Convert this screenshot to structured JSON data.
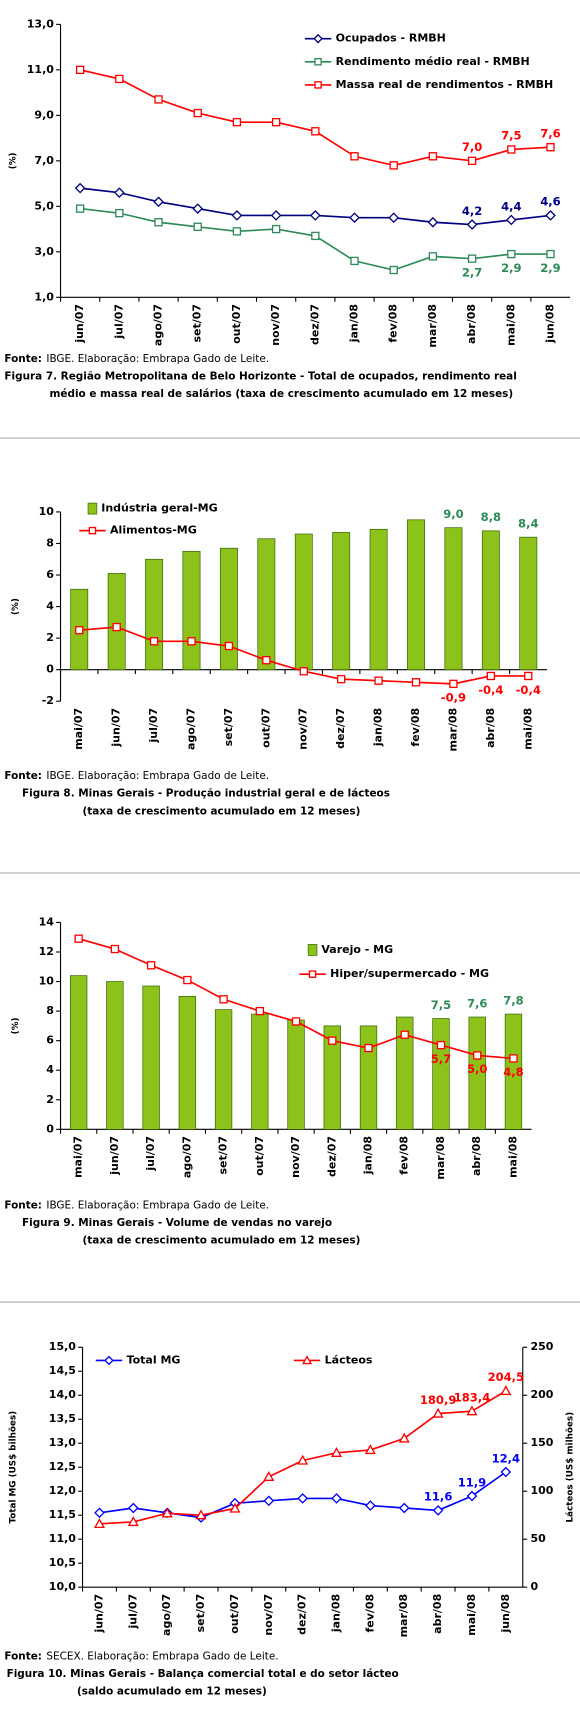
{
  "chart_data": [
    {
      "type": "line",
      "y_label": "(%)",
      "categories": [
        "jun/07",
        "jul/07",
        "ago/07",
        "set/07",
        "out/07",
        "nov/07",
        "dez/07",
        "jan/08",
        "fev/08",
        "mar/08",
        "abr/08",
        "mai/08",
        "jun/08"
      ],
      "ylim": [
        1,
        13
      ],
      "yticks": [
        {
          "value": 1,
          "label": "1,0"
        },
        {
          "value": 3,
          "label": "3,0"
        },
        {
          "value": 5,
          "label": "5,0"
        },
        {
          "value": 7,
          "label": "7,0"
        },
        {
          "value": 9,
          "label": "9,0"
        },
        {
          "value": 11,
          "label": "11,0"
        },
        {
          "value": 13,
          "label": "13,0"
        }
      ],
      "series": [
        {
          "name": "Ocupados - RMBH",
          "type": "line",
          "color": "#000080",
          "marker": "diamond",
          "label_position": "above",
          "values": [
            5.8,
            5.6,
            5.2,
            4.9,
            4.6,
            4.6,
            4.6,
            4.5,
            4.5,
            4.3,
            4.2,
            4.4,
            4.6
          ],
          "value_labels": [
            null,
            null,
            null,
            null,
            null,
            null,
            null,
            null,
            null,
            null,
            "4,2",
            "4,4",
            "4,6"
          ]
        },
        {
          "name": "Rendimento médio real - RMBH",
          "type": "line",
          "color": "#2E8B57",
          "marker": "square",
          "label_position": "below",
          "values": [
            4.9,
            4.7,
            4.3,
            4.1,
            3.9,
            4.0,
            3.7,
            2.6,
            2.2,
            2.8,
            2.7,
            2.9,
            2.9
          ],
          "value_labels": [
            null,
            null,
            null,
            null,
            null,
            null,
            null,
            null,
            null,
            null,
            "2,7",
            "2,9",
            "2,9"
          ]
        },
        {
          "name": "Massa real de rendimentos - RMBH",
          "type": "line",
          "color": "#FF0000",
          "marker": "square",
          "label_position": "above",
          "values": [
            11.0,
            10.6,
            9.7,
            9.1,
            8.7,
            8.7,
            8.3,
            7.2,
            6.8,
            7.2,
            7.0,
            7.5,
            7.6
          ],
          "value_labels": [
            null,
            null,
            null,
            null,
            null,
            null,
            null,
            null,
            null,
            null,
            "7,0",
            "7,5",
            "7,6"
          ]
        }
      ],
      "source_label": "Fonte:",
      "source": "IBGE. Elaboração: Embrapa Gado de Leite.",
      "caption": [
        "Figura 7. Região Metropolitana de Belo Horizonte - Total de ocupados, rendimento real",
        "médio e massa real de salários (taxa de crescimento acumulado em 12 meses)"
      ]
    },
    {
      "type": "combo",
      "y_label": "(%)",
      "categories": [
        "mai/07",
        "jun/07",
        "jul/07",
        "ago/07",
        "set/07",
        "out/07",
        "nov/07",
        "dez/07",
        "jan/08",
        "fev/08",
        "mar/08",
        "abr/08",
        "mai/08"
      ],
      "ylim": [
        -2,
        10
      ],
      "yticks": [
        -2,
        0,
        2,
        4,
        6,
        8,
        10
      ],
      "series": [
        {
          "name": "Indústria geral-MG",
          "type": "bar",
          "color": "#8CC21A",
          "label_position": "above",
          "label_color": "#2E8B57",
          "values": [
            5.1,
            6.1,
            7.0,
            7.5,
            7.7,
            8.3,
            8.6,
            8.7,
            8.9,
            9.5,
            9.0,
            8.8,
            8.4
          ],
          "value_labels": [
            null,
            null,
            null,
            null,
            null,
            null,
            null,
            null,
            null,
            null,
            "9,0",
            "8,8",
            "8,4"
          ]
        },
        {
          "name": "Alimentos-MG",
          "type": "line",
          "color": "#FF0000",
          "marker": "square",
          "label_position": "below",
          "values": [
            2.5,
            2.7,
            1.8,
            1.8,
            1.5,
            0.6,
            -0.1,
            -0.6,
            -0.7,
            -0.8,
            -0.9,
            -0.4,
            -0.4
          ],
          "value_labels": [
            null,
            null,
            null,
            null,
            null,
            null,
            null,
            null,
            null,
            null,
            "-0,9",
            "-0,4",
            "-0,4"
          ]
        }
      ],
      "source_label": "Fonte:",
      "source": "IBGE. Elaboração: Embrapa Gado de Leite.",
      "caption": [
        "Figura 8. Minas Gerais - Produção industrial geral e de lácteos",
        "(taxa de crescimento acumulado em 12 meses)"
      ]
    },
    {
      "type": "combo",
      "y_label": "(%)",
      "categories": [
        "mai/07",
        "jun/07",
        "jul/07",
        "ago/07",
        "set/07",
        "out/07",
        "nov/07",
        "dez/07",
        "jan/08",
        "fev/08",
        "mar/08",
        "abr/08",
        "mai/08"
      ],
      "ylim": [
        0,
        14
      ],
      "yticks": [
        0,
        2,
        4,
        6,
        8,
        10,
        12,
        14
      ],
      "series": [
        {
          "name": "Varejo - MG",
          "type": "bar",
          "color": "#8CC21A",
          "label_position": "above",
          "label_color": "#2E8B57",
          "values": [
            10.4,
            10.0,
            9.7,
            9.0,
            8.1,
            7.8,
            7.4,
            7.0,
            7.0,
            7.6,
            7.5,
            7.6,
            7.8
          ],
          "value_labels": [
            null,
            null,
            null,
            null,
            null,
            null,
            null,
            null,
            null,
            null,
            "7,5",
            "7,6",
            "7,8"
          ]
        },
        {
          "name": "Hiper/supermercado - MG",
          "type": "line",
          "color": "#FF0000",
          "marker": "square",
          "label_position": "below",
          "values": [
            12.9,
            12.2,
            11.1,
            10.1,
            8.8,
            8.0,
            7.3,
            6.0,
            5.5,
            6.4,
            5.7,
            5.0,
            4.8
          ],
          "value_labels": [
            null,
            null,
            null,
            null,
            null,
            null,
            null,
            null,
            null,
            null,
            "5,7",
            "5,0",
            "4,8"
          ]
        }
      ],
      "source_label": "Fonte:",
      "source": "IBGE. Elaboração: Embrapa Gado de Leite.",
      "caption": [
        "Figura 9. Minas Gerais - Volume de vendas no varejo",
        "(taxa de crescimento acumulado em 12 meses)"
      ]
    },
    {
      "type": "line",
      "y_label": "Total MG (US$ bilhões)",
      "y2_label": "Lácteos (US$ milhões)",
      "categories": [
        "jun/07",
        "jul/07",
        "ago/07",
        "set/07",
        "out/07",
        "nov/07",
        "dez/07",
        "jan/08",
        "fev/08",
        "mar/08",
        "abr/08",
        "mai/08",
        "jun/08"
      ],
      "ylim": [
        10,
        15
      ],
      "yticks": [
        {
          "value": 10,
          "label": "10,0"
        },
        {
          "value": 10.5,
          "label": "10,5"
        },
        {
          "value": 11,
          "label": "11,0"
        },
        {
          "value": 11.5,
          "label": "11,5"
        },
        {
          "value": 12,
          "label": "12,0"
        },
        {
          "value": 12.5,
          "label": "12,5"
        },
        {
          "value": 13,
          "label": "13,0"
        },
        {
          "value": 13.5,
          "label": "13,5"
        },
        {
          "value": 14,
          "label": "14,0"
        },
        {
          "value": 14.5,
          "label": "14,5"
        },
        {
          "value": 15,
          "label": "15,0"
        }
      ],
      "y2lim": [
        0,
        250
      ],
      "y2ticks": [
        0,
        50,
        100,
        150,
        200,
        250
      ],
      "series": [
        {
          "name": "Total MG",
          "type": "line",
          "color": "#0000FF",
          "marker": "diamond",
          "label_position": "above",
          "values": [
            11.55,
            11.65,
            11.55,
            11.45,
            11.75,
            11.8,
            11.85,
            11.85,
            11.7,
            11.65,
            11.6,
            11.9,
            12.4
          ],
          "value_labels": [
            null,
            null,
            null,
            null,
            null,
            null,
            null,
            null,
            null,
            null,
            "11,6",
            "11,9",
            "12,4"
          ]
        },
        {
          "name": "Lácteos",
          "type": "line",
          "axis": "y2",
          "color": "#FF0000",
          "marker": "triangle",
          "label_position": "above",
          "values": [
            66,
            68,
            77,
            75,
            82,
            115,
            132,
            140,
            143,
            155,
            180.9,
            183.4,
            204.5
          ],
          "value_labels": [
            null,
            null,
            null,
            null,
            null,
            null,
            null,
            null,
            null,
            null,
            "180,9",
            "183,4",
            "204,5"
          ]
        }
      ],
      "source_label": "Fonte:",
      "source": "SECEX. Elaboração: Embrapa Gado de Leite.",
      "caption": [
        "Figura 10. Minas Gerais - Balança comercial total e do setor lácteo",
        "(saldo acumulado em 12 meses)"
      ]
    }
  ]
}
